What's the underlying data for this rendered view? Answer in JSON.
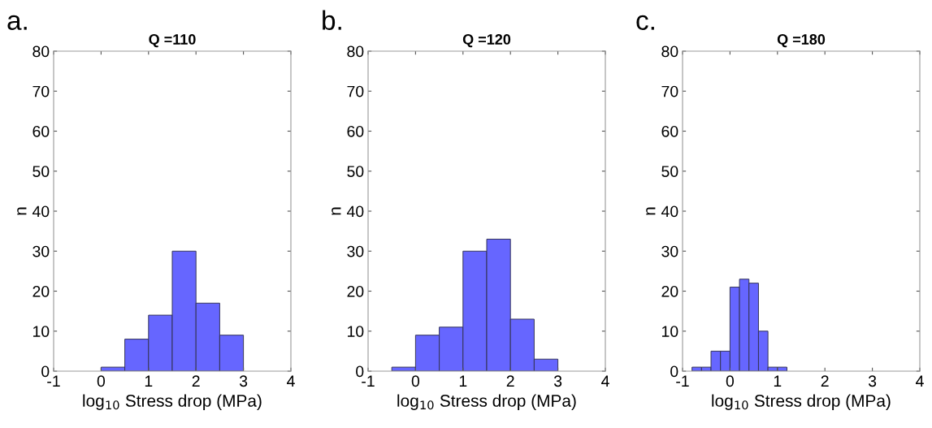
{
  "chart_data": [
    {
      "type": "histogram",
      "title": "Q =110",
      "xlabel": "log$_{10}$ Stress drop (MPa)",
      "ylabel": "n",
      "annotations": [
        "a."
      ],
      "color": "#6666ff",
      "bins": [
        0,
        0.5,
        1,
        1.5,
        2,
        2.5,
        3
      ],
      "values": [
        1,
        8,
        14,
        30,
        17,
        9
      ],
      "xlim": [
        -1,
        4
      ],
      "ylim": [
        0,
        80
      ],
      "xticks": [
        -1,
        0,
        1,
        2,
        3,
        4
      ],
      "yticks": [
        0,
        10,
        20,
        30,
        40,
        50,
        60,
        70,
        80
      ],
      "grid": false
    },
    {
      "type": "histogram",
      "title": "Q =120",
      "xlabel": "log$_{10}$ Stress drop (MPa)",
      "ylabel": "n",
      "annotations": [
        "b."
      ],
      "color": "#6666ff",
      "bins": [
        -0.5,
        0,
        0.5,
        1,
        1.5,
        2,
        2.5,
        3
      ],
      "values": [
        1,
        9,
        11,
        30,
        33,
        13,
        3
      ],
      "xlim": [
        -1,
        4
      ],
      "ylim": [
        0,
        80
      ],
      "xticks": [
        -1,
        0,
        1,
        2,
        3,
        4
      ],
      "yticks": [
        0,
        10,
        20,
        30,
        40,
        50,
        60,
        70,
        80
      ],
      "grid": false
    },
    {
      "type": "histogram",
      "title": "Q =180",
      "xlabel": "log$_{10}$ Stress drop (MPa)",
      "ylabel": "n",
      "annotations": [
        "c."
      ],
      "color": "#6666ff",
      "bins": [
        -0.8,
        -0.6,
        -0.4,
        -0.2,
        0,
        0.2,
        0.4,
        0.6,
        0.8,
        1.0,
        1.2
      ],
      "values": [
        1,
        1,
        5,
        5,
        21,
        23,
        22,
        10,
        1,
        1
      ],
      "xlim": [
        -1,
        4
      ],
      "ylim": [
        0,
        80
      ],
      "xticks": [
        -1,
        0,
        1,
        2,
        3,
        4
      ],
      "yticks": [
        0,
        10,
        20,
        30,
        40,
        50,
        60,
        70,
        80
      ],
      "grid": false
    }
  ]
}
